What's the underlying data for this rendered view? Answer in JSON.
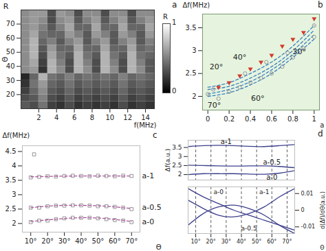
{
  "chart_data": [
    {
      "type": "heatmap",
      "title": "a",
      "xlabel": "f(MHz)",
      "ylabel": "Θ",
      "annotations": [
        {
          "text": "R",
          "x": 0,
          "y": 80
        }
      ],
      "x": [
        0.5,
        1.5,
        2.5,
        3.5,
        4.5,
        5.5,
        6.5,
        7.5,
        8.5,
        9.5,
        10.5,
        11.5,
        12.5,
        13.5,
        14.5
      ],
      "y": [
        12.5,
        17.5,
        22.5,
        27.5,
        32.5,
        37.5,
        42.5,
        47.5,
        52.5,
        57.5,
        62.5,
        67.5,
        72.5,
        77.5
      ],
      "z": [
        [
          0.35,
          0.3,
          0.45,
          0.25,
          0.2,
          0.3,
          0.2,
          0.25,
          0.2,
          0.25,
          0.2,
          0.3,
          0.2,
          0.25,
          0.2
        ],
        [
          0.3,
          0.35,
          0.5,
          0.3,
          0.25,
          0.35,
          0.25,
          0.3,
          0.25,
          0.3,
          0.25,
          0.35,
          0.25,
          0.3,
          0.25
        ],
        [
          0.25,
          0.4,
          0.55,
          0.35,
          0.3,
          0.4,
          0.3,
          0.35,
          0.3,
          0.35,
          0.3,
          0.4,
          0.3,
          0.35,
          0.3
        ],
        [
          0.2,
          0.45,
          0.6,
          0.4,
          0.35,
          0.45,
          0.35,
          0.4,
          0.35,
          0.4,
          0.35,
          0.45,
          0.35,
          0.4,
          0.35
        ],
        [
          0.15,
          0.4,
          0.7,
          0.45,
          0.4,
          0.5,
          0.4,
          0.45,
          0.4,
          0.45,
          0.4,
          0.5,
          0.4,
          0.45,
          0.4
        ],
        [
          0.55,
          0.6,
          0.2,
          0.7,
          0.55,
          0.3,
          0.7,
          0.55,
          0.3,
          0.7,
          0.55,
          0.3,
          0.7,
          0.55,
          0.35
        ],
        [
          0.55,
          0.65,
          0.25,
          0.7,
          0.5,
          0.3,
          0.7,
          0.5,
          0.3,
          0.7,
          0.5,
          0.3,
          0.7,
          0.5,
          0.35
        ],
        [
          0.55,
          0.7,
          0.3,
          0.65,
          0.45,
          0.35,
          0.7,
          0.45,
          0.35,
          0.7,
          0.45,
          0.35,
          0.7,
          0.45,
          0.4
        ],
        [
          0.55,
          0.7,
          0.35,
          0.6,
          0.4,
          0.4,
          0.65,
          0.4,
          0.4,
          0.65,
          0.4,
          0.4,
          0.65,
          0.4,
          0.45
        ],
        [
          0.55,
          0.7,
          0.4,
          0.5,
          0.35,
          0.5,
          0.6,
          0.35,
          0.5,
          0.6,
          0.35,
          0.5,
          0.6,
          0.35,
          0.5
        ],
        [
          0.55,
          0.65,
          0.45,
          0.4,
          0.4,
          0.6,
          0.5,
          0.35,
          0.6,
          0.5,
          0.35,
          0.6,
          0.5,
          0.35,
          0.6
        ],
        [
          0.55,
          0.6,
          0.5,
          0.35,
          0.5,
          0.65,
          0.4,
          0.4,
          0.65,
          0.4,
          0.4,
          0.65,
          0.4,
          0.4,
          0.65
        ],
        [
          0.55,
          0.6,
          0.55,
          0.3,
          0.55,
          0.6,
          0.35,
          0.5,
          0.6,
          0.35,
          0.5,
          0.6,
          0.35,
          0.5,
          0.6
        ],
        [
          0.55,
          0.6,
          0.6,
          0.3,
          0.6,
          0.55,
          0.3,
          0.55,
          0.55,
          0.3,
          0.55,
          0.55,
          0.3,
          0.55,
          0.55
        ]
      ],
      "xlim": [
        0,
        15
      ],
      "ylim": [
        10,
        80
      ],
      "xticks": [
        2,
        4,
        6,
        8,
        10,
        12,
        14
      ],
      "yticks": [
        20,
        30,
        40,
        50,
        60,
        70
      ],
      "colorbar": {
        "label": "R",
        "range": [
          0,
          1
        ],
        "ticks": [
          0,
          1
        ]
      }
    },
    {
      "type": "scatter",
      "title": "b",
      "xlabel": "a",
      "ylabel": "Δf(MHz)",
      "xlim": [
        -0.05,
        1.05
      ],
      "ylim": [
        1.7,
        3.8
      ],
      "xticks": [
        0,
        0.2,
        0.4,
        0.6,
        0.8,
        1
      ],
      "yticks": [
        2,
        2.5,
        3,
        3.5
      ],
      "series": [
        {
          "type": "line",
          "color": "#3a7fc0",
          "line_style": "dashed",
          "x": [
            0,
            0.2,
            0.4,
            0.6,
            0.8,
            1
          ],
          "values": [
            2.2,
            2.3,
            2.5,
            2.75,
            3.1,
            3.55
          ]
        },
        {
          "type": "line",
          "color": "#3a7fc0",
          "line_style": "dashed",
          "x": [
            0,
            0.2,
            0.4,
            0.6,
            0.8,
            1
          ],
          "values": [
            2.15,
            2.22,
            2.4,
            2.65,
            3.0,
            3.45
          ]
        },
        {
          "type": "line",
          "color": "#3a7fc0",
          "line_style": "dashed",
          "x": [
            0,
            0.2,
            0.4,
            0.6,
            0.8,
            1
          ],
          "values": [
            2.05,
            2.15,
            2.32,
            2.58,
            2.92,
            3.35
          ]
        },
        {
          "type": "line",
          "color": "#3a7fc0",
          "line_style": "dashed",
          "x": [
            0,
            0.2,
            0.4,
            0.6,
            0.8,
            1
          ],
          "values": [
            2.0,
            2.08,
            2.25,
            2.5,
            2.85,
            3.25
          ]
        },
        {
          "type": "scatter",
          "marker": "circle",
          "color": "#8c8c8c",
          "x": [
            0,
            0.05,
            0.1,
            0.2,
            0.3,
            0.35,
            0.4,
            0.5,
            0.55,
            0.6,
            0.7,
            0.75,
            0.8,
            0.9,
            1,
            1
          ],
          "values": [
            2.05,
            2.15,
            1.95,
            2.1,
            2.2,
            2.5,
            2.3,
            2.4,
            2.75,
            2.5,
            2.65,
            2.95,
            2.85,
            3.05,
            3.3,
            3.55
          ]
        },
        {
          "type": "scatter",
          "marker": "triangle",
          "color": "#d33a2c",
          "x": [
            0.1,
            0.2,
            0.3,
            0.4,
            0.5,
            0.6,
            0.7,
            0.8,
            0.9,
            1
          ],
          "values": [
            2.2,
            2.3,
            2.45,
            2.6,
            2.75,
            2.9,
            3.1,
            3.25,
            3.4,
            3.7
          ]
        }
      ],
      "annotations": [
        {
          "text": "20°",
          "x": 0.08,
          "y": 2.65
        },
        {
          "text": "40°",
          "x": 0.3,
          "y": 2.85
        },
        {
          "text": "60°",
          "x": 0.47,
          "y": 1.95
        },
        {
          "text": "70°",
          "x": 0.06,
          "y": 1.8
        },
        {
          "text": "30°",
          "x": 0.86,
          "y": 2.98
        }
      ]
    },
    {
      "type": "scatter",
      "title": "c",
      "xlabel": "Θ",
      "ylabel": "Δf(MHz)",
      "xlim": [
        5,
        75
      ],
      "ylim": [
        1.7,
        4.7
      ],
      "xticks": [
        {
          "value": 10,
          "label": "10°"
        },
        {
          "value": 20,
          "label": "20°"
        },
        {
          "value": 30,
          "label": "30°"
        },
        {
          "value": 40,
          "label": "40°"
        },
        {
          "value": 50,
          "label": "50°"
        },
        {
          "value": 60,
          "label": "60°"
        },
        {
          "value": 70,
          "label": "70°"
        }
      ],
      "yticks": [
        2,
        2.5,
        3,
        3.5,
        4,
        4.5
      ],
      "series": [
        {
          "type": "line",
          "color": "#b0509e",
          "line_style": "dashed",
          "x": [
            10,
            25,
            40,
            55,
            70
          ],
          "values": [
            3.62,
            3.64,
            3.65,
            3.65,
            3.65
          ]
        },
        {
          "type": "line",
          "color": "#b0509e",
          "line_style": "dashed",
          "x": [
            10,
            25,
            40,
            55,
            70
          ],
          "values": [
            2.55,
            2.62,
            2.63,
            2.6,
            2.52
          ]
        },
        {
          "type": "line",
          "color": "#b0509e",
          "line_style": "dashed",
          "x": [
            10,
            25,
            40,
            55,
            70
          ],
          "values": [
            2.07,
            2.15,
            2.2,
            2.17,
            2.07
          ]
        },
        {
          "type": "scatter",
          "marker": "square",
          "color": "#888888",
          "x": [
            10,
            15,
            20,
            25,
            30,
            35,
            40,
            45,
            50,
            55,
            60,
            65,
            70
          ],
          "values": [
            3.6,
            3.62,
            3.64,
            3.63,
            3.65,
            3.66,
            3.65,
            3.64,
            3.66,
            3.65,
            3.64,
            3.66,
            3.65
          ]
        },
        {
          "type": "scatter",
          "marker": "square",
          "color": "#888888",
          "x": [
            10,
            15,
            20,
            25,
            30,
            35,
            40,
            45,
            50,
            55,
            60,
            65,
            70
          ],
          "values": [
            2.55,
            2.55,
            2.6,
            2.62,
            2.62,
            2.63,
            2.63,
            2.62,
            2.6,
            2.6,
            2.58,
            2.55,
            2.5
          ]
        },
        {
          "type": "scatter",
          "marker": "square",
          "color": "#888888",
          "x": [
            10,
            15,
            20,
            25,
            30,
            35,
            40,
            45,
            50,
            55,
            60,
            65,
            70
          ],
          "values": [
            2.05,
            2.1,
            2.1,
            2.15,
            2.18,
            2.2,
            2.2,
            2.2,
            2.18,
            2.15,
            2.12,
            2.1,
            2.05
          ]
        },
        {
          "type": "scatter",
          "marker": "square",
          "color": "#888888",
          "x": [
            12
          ],
          "values": [
            4.4
          ]
        }
      ],
      "annotations": [
        {
          "text": "a-1",
          "x": 75,
          "y": 3.65
        },
        {
          "text": "a-0.5",
          "x": 75,
          "y": 2.55
        },
        {
          "text": "a-0",
          "x": 75,
          "y": 2.05
        }
      ]
    },
    {
      "type": "line",
      "title": "d",
      "ylabel": "Δf(a.u.)",
      "grid": "x",
      "tick_labels": "y",
      "xlim": [
        5,
        75
      ],
      "ylim": [
        1.7,
        3.9
      ],
      "xticks": [
        {
          "value": 10,
          "label": "10°"
        },
        {
          "value": 20,
          "label": "20°"
        },
        {
          "value": 30,
          "label": "30°"
        },
        {
          "value": 40,
          "label": "40°"
        },
        {
          "value": 50,
          "label": "50°"
        },
        {
          "value": 60,
          "label": "60°"
        },
        {
          "value": 70,
          "label": "70°"
        }
      ],
      "yticks": [
        2,
        2.5,
        3,
        3.5
      ],
      "series": [
        {
          "color": "#3c3f8c",
          "x": [
            5,
            15,
            25,
            35,
            45,
            55,
            65,
            75
          ],
          "values": [
            3.55,
            3.6,
            3.62,
            3.6,
            3.56,
            3.55,
            3.6,
            3.66
          ]
        },
        {
          "color": "#3c3f8c",
          "x": [
            5,
            15,
            25,
            35,
            45,
            55,
            65,
            75
          ],
          "values": [
            2.52,
            2.5,
            2.48,
            2.47,
            2.48,
            2.48,
            2.45,
            2.38
          ]
        },
        {
          "color": "#3c3f8c",
          "x": [
            5,
            15,
            25,
            35,
            45,
            55,
            65,
            75
          ],
          "values": [
            2.0,
            2.05,
            2.05,
            2.05,
            2.03,
            2.02,
            2.08,
            2.22
          ]
        }
      ],
      "annotations": [
        {
          "text": "a-1",
          "x": 30,
          "y": 3.8
        },
        {
          "text": "a-0.5",
          "x": 60,
          "y": 2.66
        },
        {
          "text": "a-0",
          "x": 60,
          "y": 1.83
        }
      ]
    },
    {
      "type": "line",
      "xlabel": "Θ",
      "y2label": "d(Δf)/dΘ(a.u.)",
      "grid": "x",
      "xlim": [
        5,
        75
      ],
      "y2lim": [
        -0.014,
        0.014
      ],
      "xticks": [
        {
          "value": 10,
          "label": "10°"
        },
        {
          "value": 20,
          "label": "20°"
        },
        {
          "value": 30,
          "label": "30°"
        },
        {
          "value": 40,
          "label": "40°"
        },
        {
          "value": 50,
          "label": "50°"
        },
        {
          "value": 60,
          "label": "60°"
        },
        {
          "value": 70,
          "label": "70°"
        }
      ],
      "y2ticks": [
        -0.01,
        0,
        0.01
      ],
      "series": [
        {
          "axis": "y2",
          "color": "#3c3f8c",
          "x": [
            5,
            15,
            25,
            35,
            45,
            55,
            65,
            75
          ],
          "values": [
            0.006,
            0.001,
            -0.003,
            -0.004,
            -0.002,
            0.002,
            0.008,
            0.013
          ]
        },
        {
          "axis": "y2",
          "color": "#3c3f8c",
          "x": [
            5,
            15,
            25,
            35,
            45,
            55,
            65,
            75
          ],
          "values": [
            0.013,
            0.008,
            0.004,
            0.0,
            -0.003,
            -0.006,
            -0.009,
            -0.012
          ]
        },
        {
          "axis": "y2",
          "color": "#3c3f8c",
          "x": [
            5,
            15,
            25,
            35,
            45,
            55,
            65,
            75
          ],
          "values": [
            -0.009,
            -0.002,
            0.002,
            0.003,
            0.001,
            -0.003,
            -0.009,
            -0.014
          ]
        }
      ],
      "annotations": [
        {
          "text": "a-0",
          "x": 25,
          "y": 0.011
        },
        {
          "text": "a-1",
          "x": 55,
          "y": 0.011
        },
        {
          "text": "a-0.5",
          "x": 45,
          "y": -0.011
        }
      ]
    }
  ]
}
